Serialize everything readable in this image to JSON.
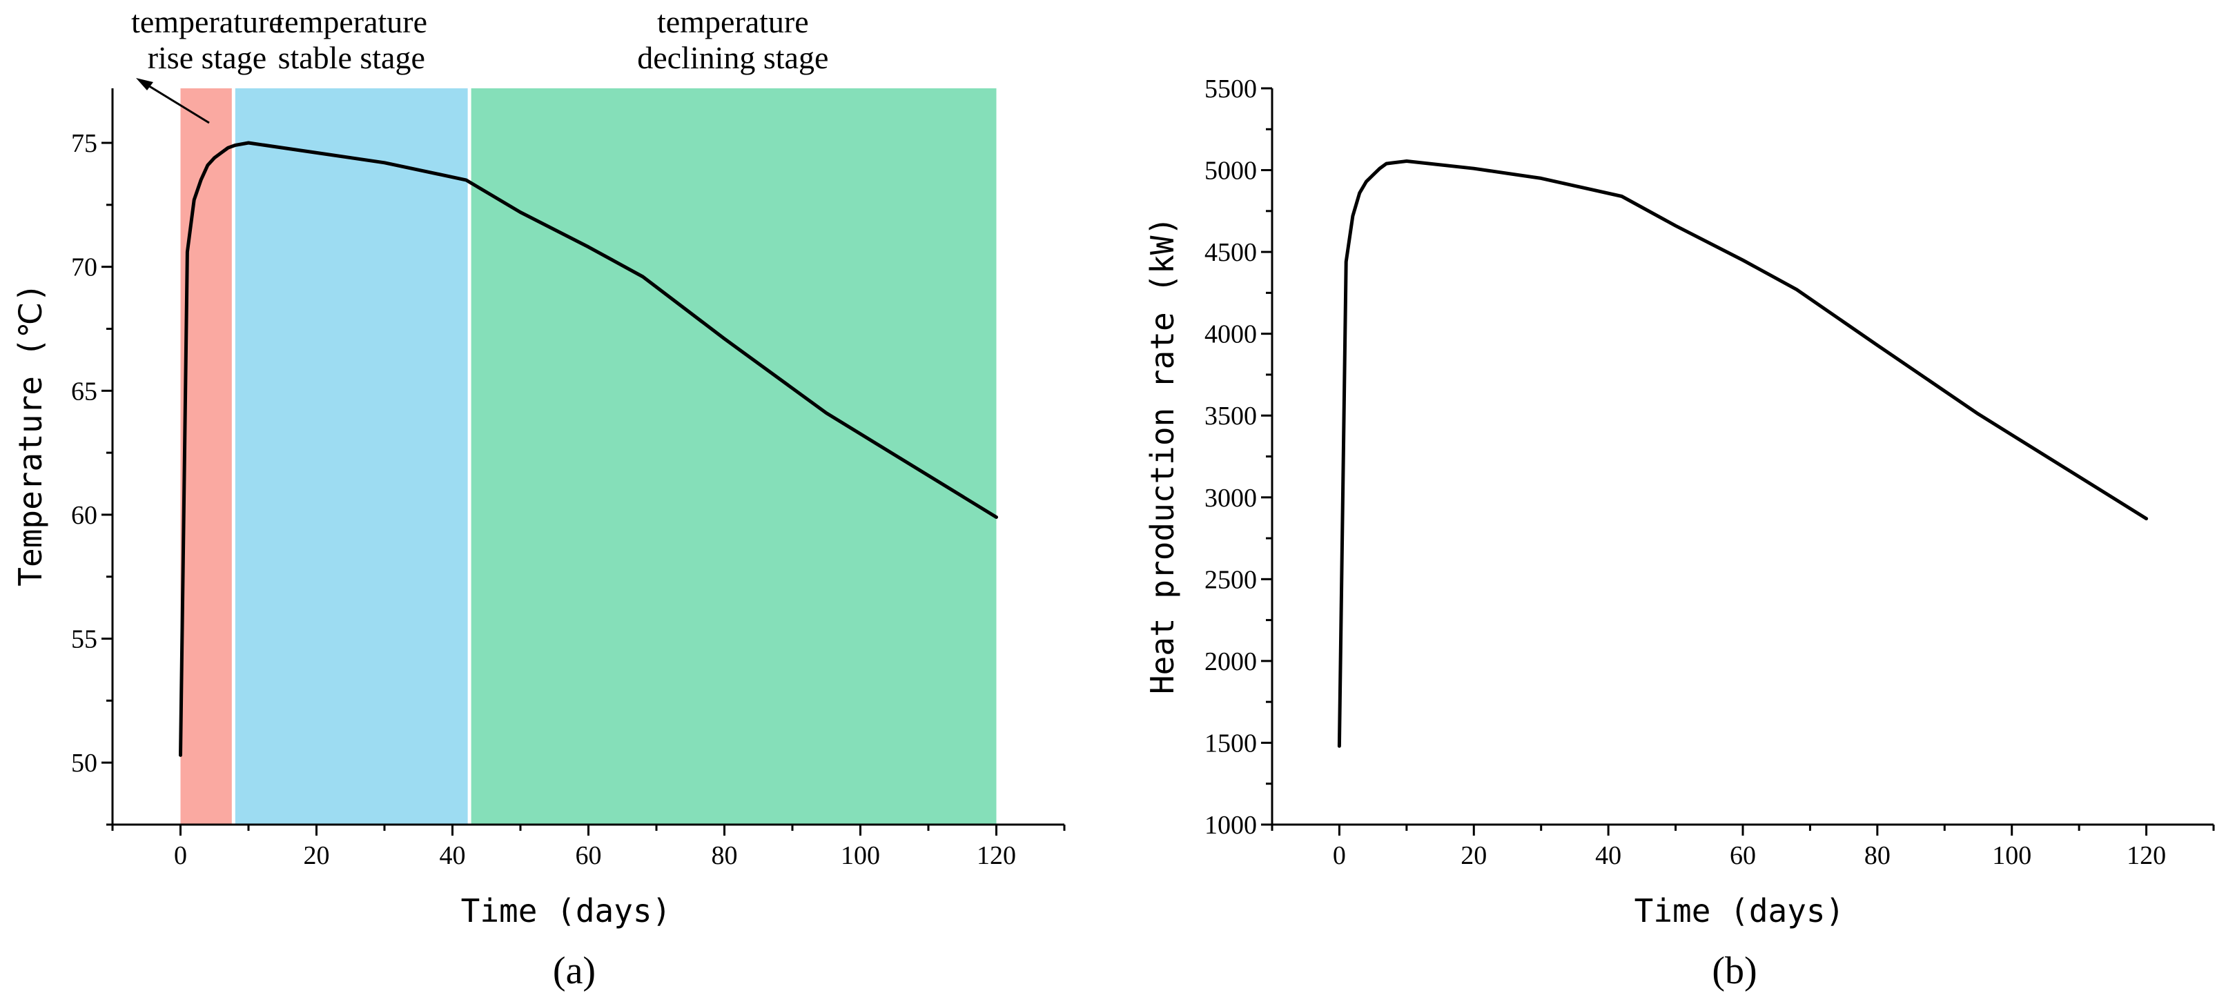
{
  "chart_data": [
    {
      "type": "line",
      "panel_label": "(a)",
      "xlabel": "Time (days)",
      "ylabel": "Temperature (℃)",
      "xlim": [
        -10,
        130
      ],
      "ylim": [
        47.5,
        77.2
      ],
      "xticks": [
        0,
        20,
        40,
        60,
        80,
        100,
        120
      ],
      "yticks": [
        50,
        55,
        60,
        65,
        70,
        75
      ],
      "grid": false,
      "series": [
        {
          "x": [
            0,
            1,
            2,
            3,
            4,
            5,
            6,
            7,
            8,
            10,
            20,
            30,
            42,
            50,
            60,
            68,
            80,
            95,
            120
          ],
          "y": [
            50.3,
            70.6,
            72.7,
            73.5,
            74.1,
            74.4,
            74.6,
            74.8,
            74.9,
            75.0,
            74.6,
            74.2,
            73.5,
            72.2,
            70.8,
            69.6,
            67.1,
            64.1,
            59.9
          ]
        }
      ],
      "stages": [
        {
          "label_lines": [
            "temperature",
            "rise stage"
          ],
          "x_start": 0,
          "x_end": 7.8,
          "color": "#FAA9A1"
        },
        {
          "label_lines": [
            "temperature",
            "stable stage"
          ],
          "x_start": 7.8,
          "x_end": 42.5,
          "color": "#9DDCF2"
        },
        {
          "label_lines": [
            "temperature",
            "declining stage"
          ],
          "x_start": 42.5,
          "x_end": 120,
          "color": "#85DFB9"
        }
      ]
    },
    {
      "type": "line",
      "panel_label": "(b)",
      "xlabel": "Time (days)",
      "ylabel": "Heat production rate (kW)",
      "xlim": [
        -10,
        130
      ],
      "ylim": [
        1000,
        5500
      ],
      "xticks": [
        0,
        20,
        40,
        60,
        80,
        100,
        120
      ],
      "yticks": [
        1000,
        1500,
        2000,
        2500,
        3000,
        3500,
        4000,
        4500,
        5000,
        5500
      ],
      "grid": false,
      "series": [
        {
          "x": [
            0,
            1,
            2,
            3,
            4,
            5,
            6,
            7,
            8,
            10,
            20,
            30,
            42,
            50,
            60,
            68,
            80,
            95,
            120
          ],
          "y": [
            1480,
            4440,
            4720,
            4860,
            4930,
            4970,
            5010,
            5040,
            5045,
            5055,
            5010,
            4950,
            4840,
            4660,
            4450,
            4270,
            3930,
            3510,
            2870
          ]
        }
      ]
    }
  ]
}
